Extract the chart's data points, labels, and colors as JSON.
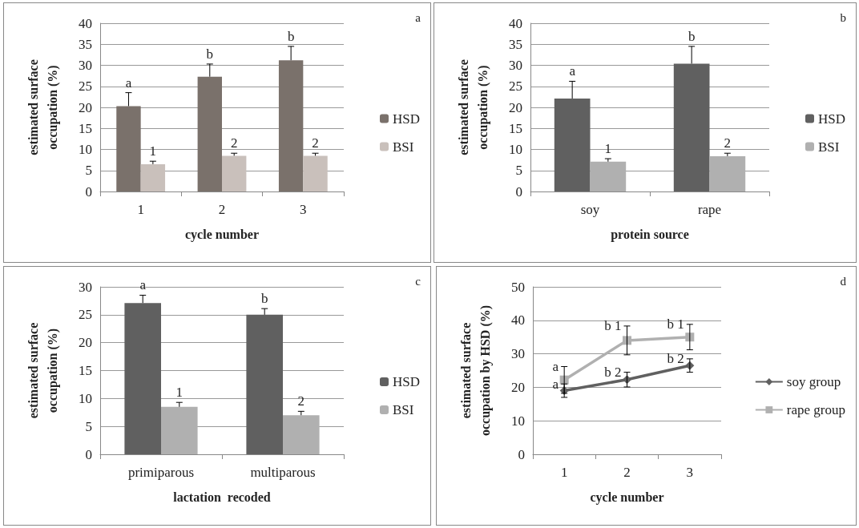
{
  "chart_data": [
    {
      "type": "bar",
      "xlabel": "cycle number",
      "ylabel": "estimated surface occupation (%)",
      "categories": [
        "1",
        "2",
        "3"
      ],
      "series": [
        {
          "name": "HSD",
          "color": "#7a716b",
          "values": [
            20.3,
            27.3,
            31.2
          ],
          "errors": [
            [
              20.3,
              23.5
            ],
            [
              27.3,
              30.3
            ],
            [
              31.2,
              34.5
            ]
          ]
        },
        {
          "name": "BSI",
          "color": "#c9c0bb",
          "values": [
            6.5,
            8.5,
            8.5
          ],
          "errors": [
            [
              6.5,
              7.2
            ],
            [
              8.5,
              9.1
            ],
            [
              8.5,
              9.1
            ]
          ]
        }
      ],
      "ylim": [
        0,
        40
      ],
      "yticks": [
        0,
        5,
        10,
        15,
        20,
        25,
        30,
        35,
        40
      ],
      "grid": "y",
      "legend": "right",
      "annotations": [
        "a",
        {
          "text": "a",
          "x": "1",
          "y": 20.3
        },
        {
          "text": "b",
          "x": "2",
          "y": 27.3
        },
        {
          "text": "b",
          "x": "3",
          "y": 31.2
        },
        {
          "text": "1",
          "x": "1",
          "y": 6.5
        },
        {
          "text": "2",
          "x": "2",
          "y": 8.5
        },
        {
          "text": "2",
          "x": "3",
          "y": 8.5
        }
      ]
    },
    {
      "type": "bar",
      "xlabel": "protein source",
      "ylabel": "estimated surface occupation (%)",
      "categories": [
        "soy",
        "rape"
      ],
      "series": [
        {
          "name": "HSD",
          "color": "#606060",
          "values": [
            22.1,
            30.4
          ],
          "errors": [
            [
              22.1,
              26.2
            ],
            [
              30.4,
              34.5
            ]
          ]
        },
        {
          "name": "BSI",
          "color": "#b0b0b0",
          "values": [
            7.1,
            8.4
          ],
          "errors": [
            [
              7.1,
              7.8
            ],
            [
              8.4,
              9.1
            ]
          ]
        }
      ],
      "ylim": [
        0,
        40
      ],
      "yticks": [
        0,
        5,
        10,
        15,
        20,
        25,
        30,
        35,
        40
      ],
      "grid": "y",
      "legend": "right",
      "annotations": [
        "b",
        {
          "text": "a",
          "x": "soy",
          "y": 22.1
        },
        {
          "text": "b",
          "x": "rape",
          "y": 30.4
        },
        {
          "text": "1",
          "x": "soy",
          "y": 7.1
        },
        {
          "text": "2",
          "x": "rape",
          "y": 8.4
        }
      ]
    },
    {
      "type": "bar",
      "xlabel": "lactation  recoded",
      "ylabel": "estimated surface occupation (%)",
      "categories": [
        "primiparous",
        "multiparous"
      ],
      "series": [
        {
          "name": "HSD",
          "color": "#606060",
          "values": [
            27.1,
            25.0
          ],
          "errors": [
            [
              27.1,
              28.5
            ],
            [
              25.0,
              26.1
            ]
          ]
        },
        {
          "name": "BSI",
          "color": "#b0b0b0",
          "values": [
            8.5,
            7.0
          ],
          "errors": [
            [
              8.5,
              9.3
            ],
            [
              7.0,
              7.7
            ]
          ]
        }
      ],
      "ylim": [
        0,
        30
      ],
      "yticks": [
        0,
        5,
        10,
        15,
        20,
        25,
        30
      ],
      "grid": "y",
      "legend": "right",
      "annotations": [
        "c",
        {
          "text": "a",
          "x": "primiparous",
          "y": 27.1
        },
        {
          "text": "b",
          "x": "multiparous",
          "y": 25.0
        },
        {
          "text": "1",
          "x": "primiparous",
          "y": 8.5
        },
        {
          "text": "2",
          "x": "multiparous",
          "y": 7.0
        }
      ]
    },
    {
      "type": "line",
      "xlabel": "cycle number",
      "ylabel": "estimated surface occupation by HSD (%)",
      "categories": [
        "1",
        "2",
        "3"
      ],
      "series": [
        {
          "name": "soy group",
          "color": "#606060",
          "marker": "diamond",
          "values": [
            19.0,
            22.3,
            26.5
          ],
          "errors": [
            2.0,
            2.2,
            2.0
          ]
        },
        {
          "name": "rape group",
          "color": "#b0b0b0",
          "marker": "square",
          "values": [
            22.2,
            34.0,
            35.0
          ],
          "errors": [
            4.0,
            4.3,
            3.8
          ]
        }
      ],
      "ylim": [
        0,
        50
      ],
      "yticks": [
        0,
        10,
        20,
        30,
        40,
        50
      ],
      "grid": "y",
      "legend": "right",
      "annotations": [
        "d",
        {
          "text": "a",
          "x": "1",
          "y": 22.2
        },
        {
          "text": "a",
          "x": "1",
          "y": 19.0
        },
        {
          "text": "b 1",
          "x": "2",
          "y": 34.0
        },
        {
          "text": "b 2",
          "x": "2",
          "y": 22.3
        },
        {
          "text": "b 1",
          "x": "3",
          "y": 35.0
        },
        {
          "text": "b 2",
          "x": "3",
          "y": 26.5
        }
      ]
    }
  ]
}
